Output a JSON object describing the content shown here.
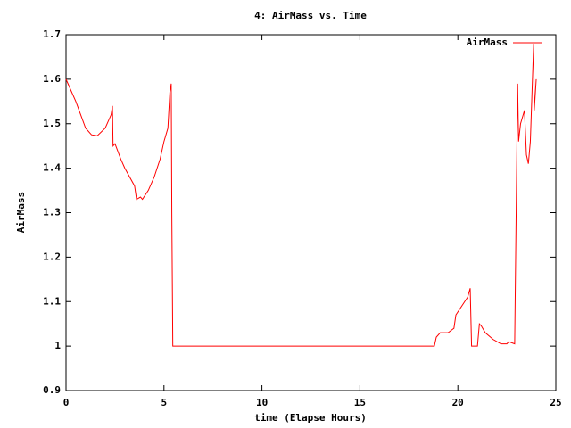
{
  "chart_data": {
    "type": "line",
    "title": "4: AirMass vs. Time",
    "x_label": "time (Elapse Hours)",
    "y_label": "AirMass",
    "x": [
      0,
      0.5,
      1,
      1.3,
      1.6,
      2.0,
      2.3,
      2.37,
      2.4,
      2.5,
      2.8,
      3.0,
      3.5,
      3.6,
      3.8,
      3.9,
      4.2,
      4.5,
      4.8,
      5.0,
      5.2,
      5.3,
      5.37,
      5.4,
      5.45,
      18.8,
      18.9,
      19.1,
      19.5,
      19.8,
      19.9,
      20.2,
      20.5,
      20.63,
      20.7,
      21.0,
      21.1,
      21.2,
      21.4,
      21.8,
      22.2,
      22.5,
      22.6,
      22.9,
      23.05,
      23.1,
      23.2,
      23.4,
      23.5,
      23.6,
      23.7,
      23.87,
      23.9,
      24.0
    ],
    "series": [
      {
        "name": "AirMass",
        "color": "#ff0000",
        "values": [
          1.6,
          1.55,
          1.49,
          1.475,
          1.473,
          1.49,
          1.52,
          1.54,
          1.45,
          1.455,
          1.42,
          1.4,
          1.36,
          1.33,
          1.335,
          1.33,
          1.35,
          1.38,
          1.42,
          1.46,
          1.49,
          1.57,
          1.59,
          1.3,
          1.0,
          1.0,
          1.02,
          1.03,
          1.03,
          1.04,
          1.07,
          1.09,
          1.11,
          1.13,
          1.0,
          1.0,
          1.05,
          1.045,
          1.03,
          1.015,
          1.005,
          1.005,
          1.01,
          1.005,
          1.59,
          1.46,
          1.5,
          1.53,
          1.43,
          1.41,
          1.46,
          1.68,
          1.53,
          1.6
        ]
      }
    ],
    "xlim": [
      0,
      25
    ],
    "xticks": [
      0,
      5,
      10,
      15,
      20,
      25
    ],
    "ylim": [
      0.9,
      1.7
    ],
    "yticks": [
      0.9,
      1,
      1.1,
      1.2,
      1.3,
      1.4,
      1.5,
      1.6,
      1.7
    ],
    "grid": false,
    "legend": "top-right"
  }
}
